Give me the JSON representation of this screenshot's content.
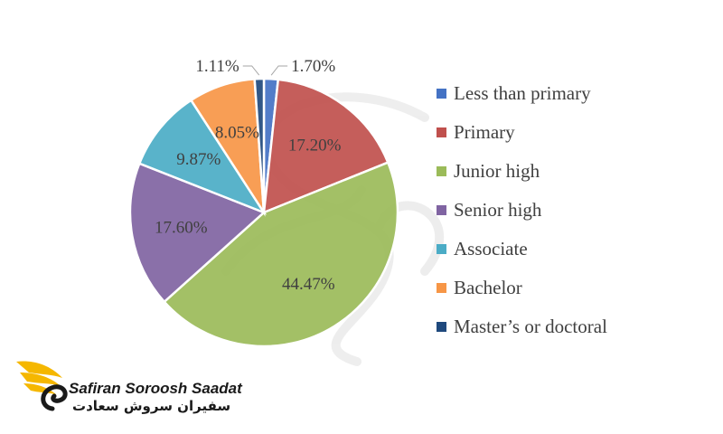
{
  "chart_data": {
    "type": "pie",
    "title": "",
    "legend_position": "right",
    "slices": [
      {
        "name": "Less than primary",
        "value": 1.7,
        "label": "1.70%",
        "color": "#4472C4"
      },
      {
        "name": "Primary",
        "value": 17.2,
        "label": "17.20%",
        "color": "#C0504D"
      },
      {
        "name": "Junior high",
        "value": 44.47,
        "label": "44.47%",
        "color": "#9BBB59"
      },
      {
        "name": "Senior high",
        "value": 17.6,
        "label": "17.60%",
        "color": "#8064A2"
      },
      {
        "name": "Associate",
        "value": 9.87,
        "label": "9.87%",
        "color": "#4BACC6"
      },
      {
        "name": "Bachelor",
        "value": 8.05,
        "label": "8.05%",
        "color": "#F79646"
      },
      {
        "name": "Master’s or doctoral",
        "value": 1.11,
        "label": "1.11%",
        "color": "#1F497D"
      }
    ]
  },
  "logo": {
    "name_en": "Safiran Soroosh Saadat",
    "name_fa": "سفیران سروش سعادت"
  }
}
